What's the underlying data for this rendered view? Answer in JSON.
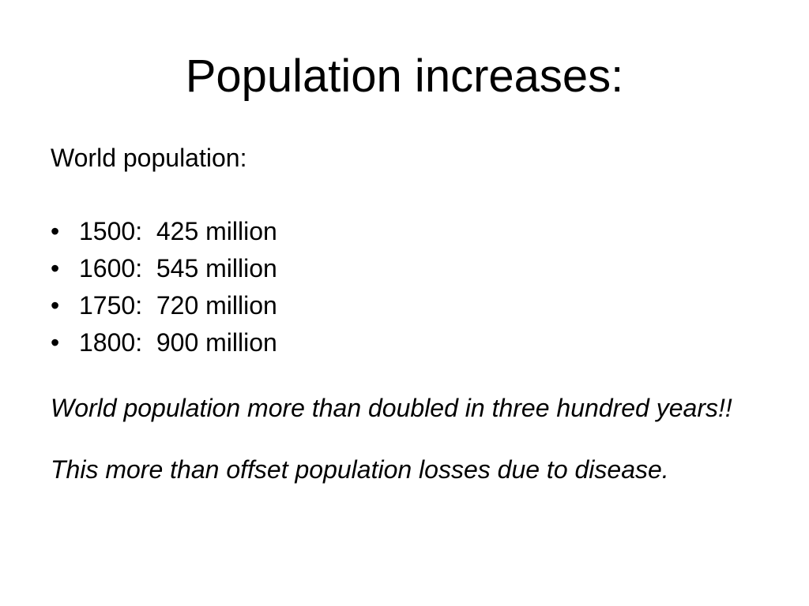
{
  "slide": {
    "title": "Population increases:",
    "intro": "World population:",
    "bullet_glyph": "•",
    "bullets": [
      "1500:  425 million",
      "1600:  545 million",
      "1750:  720 million",
      "1800:  900 million"
    ],
    "notes": [
      "World population more than doubled in three hundred years!!",
      "This more than offset population losses due to disease."
    ]
  },
  "colors": {
    "background": "#ffffff",
    "text": "#000000"
  }
}
